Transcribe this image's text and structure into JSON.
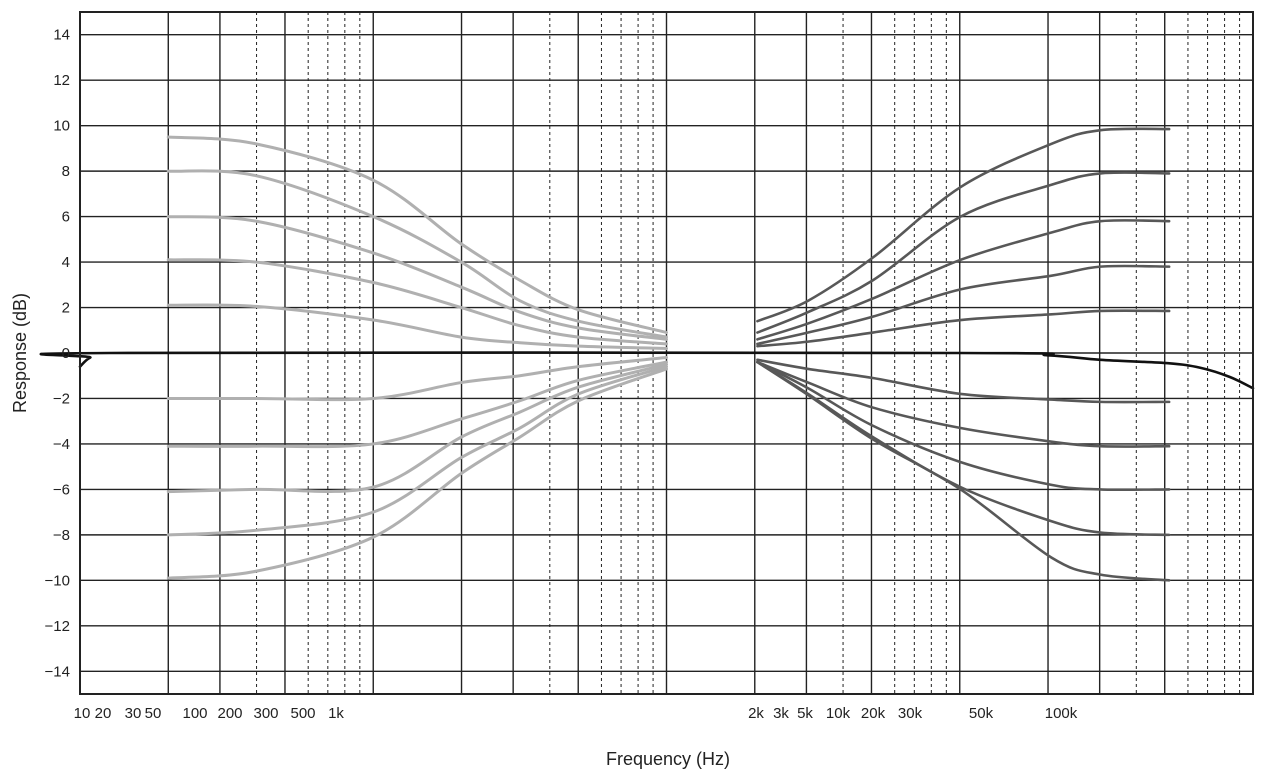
{
  "chart_data": {
    "type": "line",
    "title": "",
    "xlabel": "Frequency (Hz)",
    "ylabel": "Response (dB)",
    "xscale": "log grid, 4 decades; x values given as position on the log paper in decades (0-4)",
    "xlim": [
      0,
      4
    ],
    "ylim": [
      -15,
      15
    ],
    "yticks": [
      14,
      12,
      10,
      8,
      6,
      4,
      2,
      0,
      -2,
      -4,
      -6,
      -8,
      -10,
      -12,
      -14
    ],
    "ytick_labels": [
      "14",
      "12",
      "10",
      "8",
      "6",
      "4",
      "2",
      "0",
      "−2",
      "−4",
      "−6",
      "−8",
      "−10",
      "−12",
      "−14"
    ],
    "xtick_labels": [
      "10",
      "20",
      "30",
      "50",
      "100",
      "200",
      "300",
      "500",
      "1k",
      "2k",
      "3k",
      "5k",
      "10k",
      "20k",
      "30k",
      "50k",
      "100k"
    ],
    "grid": true,
    "legend": "none",
    "colors": {
      "low_shelf": "#b0b0b0",
      "high_shelf": "#585858",
      "flat": "#111111",
      "grid": "#222222"
    },
    "series": [
      {
        "group": "flat",
        "x": [
          0.0,
          0.035,
          0.1,
          3.0,
          3.3,
          3.48,
          3.71,
          3.82,
          3.92,
          4.0
        ],
        "y": [
          -0.6,
          -0.2,
          0,
          0,
          -0.1,
          -0.3,
          -0.45,
          -0.65,
          -1.05,
          -1.55
        ]
      },
      {
        "group": "low_shelf",
        "x": [
          0.301,
          0.6,
          1.0,
          1.3,
          1.5,
          1.7,
          2.0
        ],
        "y": [
          9.5,
          9.2,
          7.6,
          4.8,
          3.2,
          1.9,
          0.9
        ]
      },
      {
        "group": "low_shelf",
        "x": [
          0.301,
          0.6,
          1.0,
          1.3,
          1.5,
          1.7,
          2.0
        ],
        "y": [
          8.0,
          7.8,
          6.0,
          4.0,
          2.3,
          1.4,
          0.7
        ]
      },
      {
        "group": "low_shelf",
        "x": [
          0.301,
          0.6,
          1.0,
          1.3,
          1.5,
          1.7,
          2.0
        ],
        "y": [
          6.0,
          5.8,
          4.4,
          2.9,
          1.8,
          1.1,
          0.6
        ]
      },
      {
        "group": "low_shelf",
        "x": [
          0.301,
          0.6,
          1.0,
          1.3,
          1.5,
          1.7,
          2.0
        ],
        "y": [
          4.1,
          4.0,
          3.1,
          2.0,
          1.2,
          0.7,
          0.4
        ]
      },
      {
        "group": "low_shelf",
        "x": [
          0.301,
          0.6,
          1.0,
          1.3,
          1.5,
          1.7,
          2.0
        ],
        "y": [
          2.1,
          2.05,
          1.45,
          0.7,
          0.45,
          0.3,
          0.2
        ]
      },
      {
        "group": "low_shelf",
        "x": [
          0.301,
          0.6,
          1.0,
          1.3,
          1.5,
          1.7,
          2.0
        ],
        "y": [
          -2.0,
          -2.0,
          -2.0,
          -1.3,
          -1.0,
          -0.6,
          -0.2
        ]
      },
      {
        "group": "low_shelf",
        "x": [
          0.301,
          0.6,
          1.0,
          1.3,
          1.5,
          1.7,
          2.0
        ],
        "y": [
          -4.1,
          -4.1,
          -4.0,
          -2.9,
          -2.1,
          -1.2,
          -0.4
        ]
      },
      {
        "group": "low_shelf",
        "x": [
          0.301,
          0.6,
          1.0,
          1.3,
          1.5,
          1.7,
          2.0
        ],
        "y": [
          -6.1,
          -6.0,
          -5.9,
          -3.7,
          -2.6,
          -1.5,
          -0.5
        ]
      },
      {
        "group": "low_shelf",
        "x": [
          0.301,
          0.6,
          1.0,
          1.3,
          1.5,
          1.7,
          2.0
        ],
        "y": [
          -8.0,
          -7.8,
          -7.0,
          -4.6,
          -3.3,
          -1.8,
          -0.6
        ]
      },
      {
        "group": "low_shelf",
        "x": [
          0.301,
          0.6,
          1.0,
          1.3,
          1.5,
          1.7,
          2.0
        ],
        "y": [
          -9.9,
          -9.6,
          -8.1,
          -5.3,
          -3.7,
          -2.1,
          -0.7
        ]
      },
      {
        "group": "high_shelf",
        "x": [
          2.31,
          2.483,
          2.704,
          3.003,
          3.313,
          3.48,
          3.714
        ],
        "y": [
          1.4,
          2.3,
          4.2,
          7.3,
          9.2,
          9.8,
          9.85
        ]
      },
      {
        "group": "high_shelf",
        "x": [
          2.31,
          2.483,
          2.704,
          3.003,
          3.313,
          3.48,
          3.714
        ],
        "y": [
          0.9,
          1.8,
          3.2,
          6.0,
          7.4,
          7.9,
          7.9
        ]
      },
      {
        "group": "high_shelf",
        "x": [
          2.31,
          2.483,
          2.704,
          3.003,
          3.313,
          3.48,
          3.714
        ],
        "y": [
          0.6,
          1.3,
          2.4,
          4.1,
          5.3,
          5.8,
          5.8
        ]
      },
      {
        "group": "high_shelf",
        "x": [
          2.31,
          2.483,
          2.704,
          3.003,
          3.313,
          3.48,
          3.714
        ],
        "y": [
          0.4,
          0.9,
          1.6,
          2.8,
          3.4,
          3.8,
          3.8
        ]
      },
      {
        "group": "high_shelf",
        "x": [
          2.31,
          2.483,
          2.704,
          3.003,
          3.313,
          3.48,
          3.714
        ],
        "y": [
          0.3,
          0.5,
          0.9,
          1.45,
          1.7,
          1.85,
          1.85
        ]
      },
      {
        "group": "high_shelf",
        "x": [
          2.31,
          2.483,
          2.704,
          3.003,
          3.313,
          3.48,
          3.714
        ],
        "y": [
          -0.3,
          -0.7,
          -1.1,
          -1.8,
          -2.05,
          -2.15,
          -2.15
        ]
      },
      {
        "group": "high_shelf",
        "x": [
          2.31,
          2.483,
          2.704,
          3.003,
          3.313,
          3.48,
          3.714
        ],
        "y": [
          -0.4,
          -1.3,
          -2.4,
          -3.3,
          -3.9,
          -4.1,
          -4.1
        ]
      },
      {
        "group": "high_shelf",
        "x": [
          2.31,
          2.483,
          2.704,
          3.003,
          3.313,
          3.48,
          3.714
        ],
        "y": [
          -0.4,
          -1.55,
          -3.2,
          -4.8,
          -5.8,
          -6.0,
          -6.0
        ]
      },
      {
        "group": "high_shelf",
        "x": [
          2.31,
          2.483,
          2.704,
          3.003,
          3.313,
          3.48,
          3.714
        ],
        "y": [
          -0.4,
          -1.8,
          -3.7,
          -5.9,
          -7.4,
          -7.9,
          -8.0
        ]
      },
      {
        "group": "high_shelf",
        "x": [
          2.31,
          2.483,
          2.704,
          3.003,
          3.313,
          3.48,
          3.714
        ],
        "y": [
          -0.4,
          -1.85,
          -3.8,
          -6.0,
          -9.0,
          -9.75,
          -10.0
        ]
      }
    ]
  }
}
